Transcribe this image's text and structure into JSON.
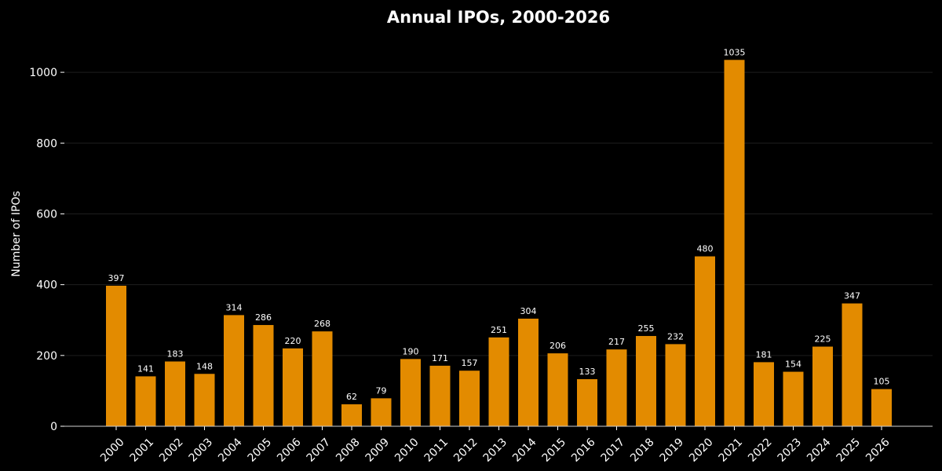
{
  "chart_data": {
    "type": "bar",
    "title": "Annual IPOs, 2000-2026",
    "xlabel": "",
    "ylabel": "Number of IPOs",
    "categories": [
      "2000",
      "2001",
      "2002",
      "2003",
      "2004",
      "2005",
      "2006",
      "2007",
      "2008",
      "2009",
      "2010",
      "2011",
      "2012",
      "2013",
      "2014",
      "2015",
      "2016",
      "2017",
      "2018",
      "2019",
      "2020",
      "2021",
      "2022",
      "2023",
      "2024",
      "2025",
      "2026"
    ],
    "values": [
      397,
      141,
      183,
      148,
      314,
      286,
      220,
      268,
      62,
      79,
      190,
      171,
      157,
      251,
      304,
      206,
      133,
      217,
      255,
      232,
      480,
      1035,
      181,
      154,
      225,
      347,
      105
    ],
    "ylim": [
      0,
      1100
    ],
    "yticks": [
      0,
      200,
      400,
      600,
      800,
      1000
    ],
    "grid": true,
    "data_labels": true,
    "legend": "none",
    "colors": {
      "background": "#000000",
      "bar": "#e38b00",
      "text": "#ffffff",
      "grid": "#1e1e1e",
      "axis": "#cfcfcf"
    }
  }
}
